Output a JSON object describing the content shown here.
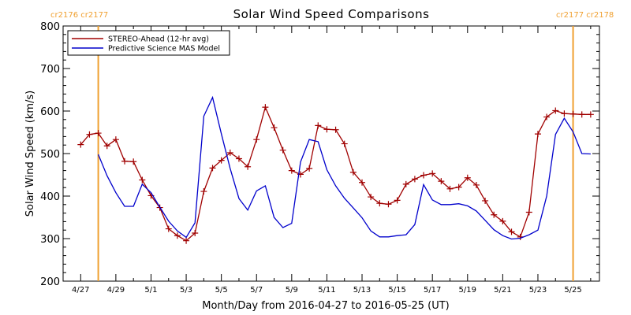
{
  "chart_data": {
    "type": "line",
    "title": "Solar Wind Speed Comparisons",
    "xlabel": "Month/Day from 2016-04-27 to 2016-05-25 (UT)",
    "ylabel": "Solar Wind Speed (km/s)",
    "ylim": [
      200,
      800
    ],
    "y_ticks": [
      200,
      300,
      400,
      500,
      600,
      700,
      800
    ],
    "x_tick_labels": [
      "4/27",
      "4/29",
      "5/1",
      "5/3",
      "5/5",
      "5/7",
      "5/9",
      "5/11",
      "5/13",
      "5/15",
      "5/17",
      "5/19",
      "5/21",
      "5/23",
      "5/25"
    ],
    "x_tick_days": [
      0,
      2,
      4,
      6,
      8,
      10,
      12,
      14,
      16,
      18,
      20,
      22,
      24,
      26,
      28
    ],
    "legend_position": "top-left",
    "grid": false,
    "series": [
      {
        "name": "STEREO-Ahead (12-hr avg)",
        "color": "#a00000",
        "marker": "plus",
        "x_days": [
          0.0,
          0.5,
          1.0,
          1.5,
          2.0,
          2.5,
          3.0,
          3.5,
          4.0,
          4.5,
          5.0,
          5.5,
          6.0,
          6.5,
          7.0,
          7.5,
          8.0,
          8.5,
          9.0,
          9.5,
          10.0,
          10.5,
          11.0,
          11.5,
          12.0,
          12.5,
          13.0,
          13.5,
          14.0,
          14.5,
          15.0,
          15.5,
          16.0,
          16.5,
          17.0,
          17.5,
          18.0,
          18.5,
          19.0,
          19.5,
          20.0,
          20.5,
          21.0,
          21.5,
          22.0,
          22.5,
          23.0,
          23.5,
          24.0,
          24.5,
          25.0,
          25.5,
          26.0,
          26.5,
          27.0,
          27.5,
          28.0,
          28.5,
          29.0
        ],
        "values": [
          521,
          545,
          548,
          518,
          533,
          482,
          481,
          438,
          401,
          373,
          323,
          307,
          295,
          313,
          411,
          466,
          484,
          502,
          488,
          469,
          533,
          609,
          561,
          508,
          460,
          451,
          465,
          566,
          557,
          556,
          523,
          456,
          432,
          398,
          383,
          381,
          390,
          428,
          440,
          449,
          453,
          435,
          417,
          421,
          443,
          426,
          389,
          356,
          341,
          316,
          304,
          362,
          546,
          586,
          601,
          594,
          593,
          592,
          592
        ],
        "x_range_note": ""
      },
      {
        "name": "Predictive Science MAS Model",
        "color": "#0000cc",
        "marker": "none",
        "x_days": [
          1.0,
          1.5,
          2.0,
          2.5,
          3.0,
          3.5,
          4.0,
          4.5,
          5.0,
          5.5,
          6.0,
          6.5,
          7.0,
          7.5,
          8.0,
          8.5,
          9.0,
          9.5,
          10.0,
          10.5,
          11.0,
          11.5,
          12.0,
          12.5,
          13.0,
          13.5,
          14.0,
          14.5,
          15.0,
          15.5,
          16.0,
          16.5,
          17.0,
          17.5,
          18.0,
          18.5,
          19.0,
          19.5,
          20.0,
          20.5,
          21.0,
          21.5,
          22.0,
          22.5,
          23.0,
          23.5,
          24.0,
          24.5,
          25.0,
          25.5,
          26.0,
          26.5,
          27.0,
          27.5,
          28.0,
          28.5,
          29.0
        ],
        "values": [
          498,
          448,
          408,
          376,
          376,
          428,
          408,
          374,
          341,
          318,
          303,
          337,
          588,
          632,
          546,
          465,
          394,
          367,
          412,
          424,
          350,
          326,
          336,
          480,
          533,
          528,
          462,
          424,
          395,
          372,
          349,
          318,
          304,
          304,
          307,
          309,
          333,
          427,
          391,
          380,
          380,
          382,
          377,
          365,
          343,
          321,
          307,
          299,
          301,
          309,
          320,
          400,
          545,
          583,
          551,
          500,
          499
        ]
      }
    ],
    "vertical_markers": [
      {
        "day": 1.0,
        "label": "cr2176 cr2177",
        "color": "#f0a030"
      },
      {
        "day": 28.0,
        "label": "cr2177 cr2178",
        "color": "#f0a030"
      }
    ]
  }
}
